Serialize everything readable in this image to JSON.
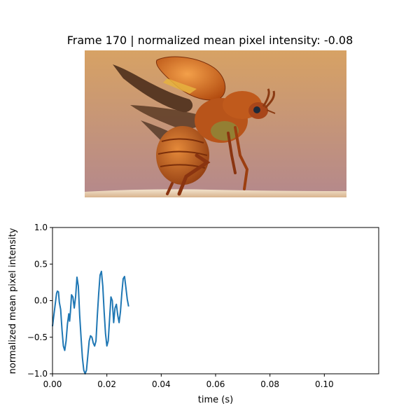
{
  "frame": {
    "title": "Frame 170 | normalized mean pixel intensity: -0.08"
  },
  "photo": {
    "subject": "beetle-taking-flight",
    "colors": {
      "sky_top": "#d7a264",
      "sky_bottom": "#b4888c",
      "ground": "#ead7c0",
      "beetle_body": "#c15a1c",
      "beetle_dark": "#6e2c0c",
      "wing_cover": "#e07a1e",
      "membrane_wing": "#5b3a22"
    }
  },
  "chart_data": {
    "type": "line",
    "title": "",
    "xlabel": "time (s)",
    "ylabel": "normalized mean pixel intensity",
    "xlim": [
      0.0,
      0.12
    ],
    "ylim": [
      -1.0,
      1.0
    ],
    "xticks": [
      0.0,
      0.02,
      0.04,
      0.06,
      0.08,
      0.1
    ],
    "xtick_labels": [
      "0.00",
      "0.02",
      "0.04",
      "0.06",
      "0.08",
      "0.10"
    ],
    "yticks": [
      -1.0,
      -0.5,
      0.0,
      0.5,
      1.0
    ],
    "ytick_labels": [
      "−1.0",
      "−0.5",
      "0.0",
      "0.5",
      "1.0"
    ],
    "grid": false,
    "line_color": "#1f77b4",
    "series": [
      {
        "x": [
          0.0,
          0.0005,
          0.001,
          0.0015,
          0.0018,
          0.0022,
          0.0025,
          0.003,
          0.0035,
          0.004,
          0.0045,
          0.005,
          0.0055,
          0.006,
          0.0063,
          0.0066,
          0.007,
          0.0075,
          0.008,
          0.0085,
          0.009,
          0.0095,
          0.01,
          0.0105,
          0.011,
          0.0115,
          0.012,
          0.0125,
          0.013,
          0.0135,
          0.014,
          0.0145,
          0.015,
          0.0155,
          0.016,
          0.0165,
          0.017,
          0.0175,
          0.018,
          0.0185,
          0.019,
          0.0195,
          0.02,
          0.0205,
          0.021,
          0.0215,
          0.022,
          0.0225,
          0.023,
          0.0235,
          0.024,
          0.0245,
          0.025,
          0.0255,
          0.026,
          0.0265,
          0.027,
          0.0275,
          0.028
        ],
        "y": [
          -0.35,
          -0.2,
          -0.05,
          0.1,
          0.13,
          0.12,
          -0.02,
          -0.12,
          -0.4,
          -0.62,
          -0.68,
          -0.55,
          -0.32,
          -0.18,
          -0.28,
          -0.15,
          0.08,
          0.05,
          -0.1,
          0.05,
          0.32,
          0.2,
          -0.2,
          -0.5,
          -0.78,
          -0.95,
          -1.0,
          -0.95,
          -0.75,
          -0.55,
          -0.48,
          -0.5,
          -0.58,
          -0.62,
          -0.55,
          -0.2,
          0.1,
          0.35,
          0.4,
          0.2,
          -0.15,
          -0.45,
          -0.62,
          -0.55,
          -0.25,
          0.05,
          0.0,
          -0.3,
          -0.1,
          -0.05,
          -0.2,
          -0.3,
          -0.15,
          0.1,
          0.3,
          0.33,
          0.18,
          0.02,
          -0.08
        ]
      }
    ]
  }
}
